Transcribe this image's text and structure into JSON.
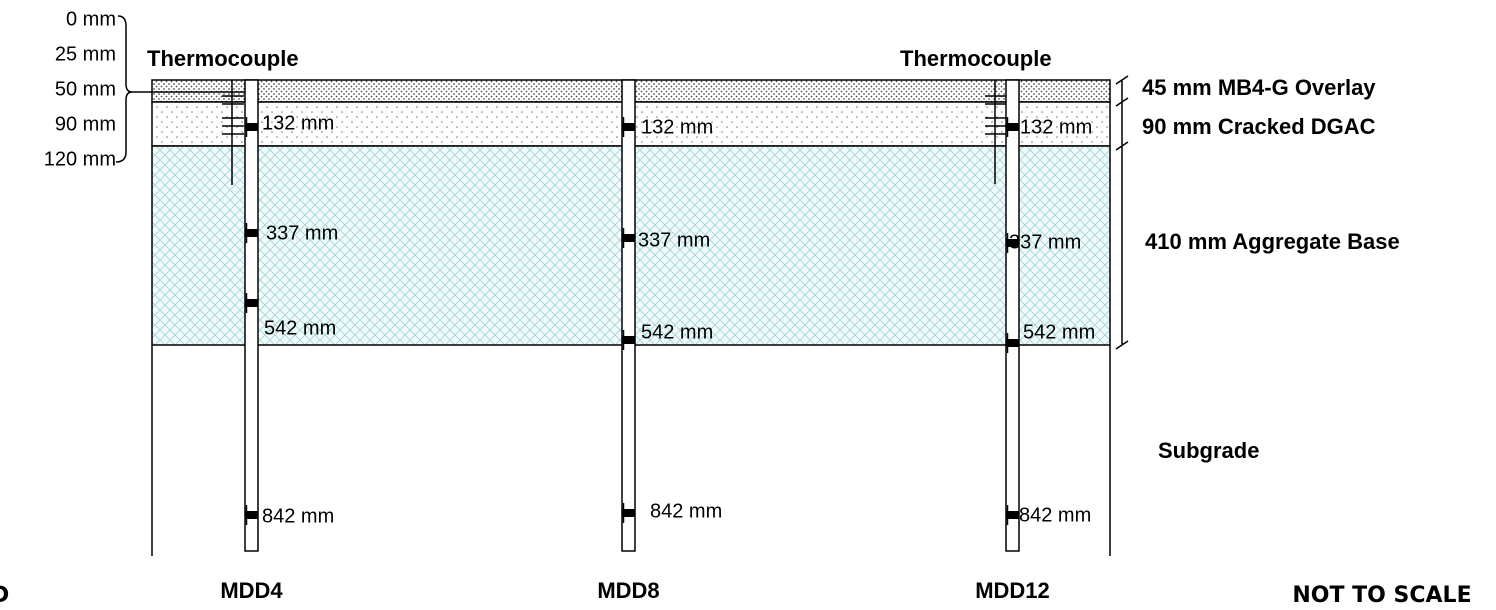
{
  "depth_scale": [
    "0 mm",
    "25 mm",
    "50 mm",
    "90 mm",
    "120 mm"
  ],
  "thermocouples": [
    "Thermocouple",
    "Thermocouple"
  ],
  "layers": [
    "45 mm MB4-G Overlay",
    "90 mm Cracked DGAC",
    "410 mm Aggregate Base",
    "Subgrade"
  ],
  "mdds": [
    {
      "label": "MDD4",
      "sensors": [
        "132 mm",
        "337 mm",
        "542 mm",
        "842 mm"
      ]
    },
    {
      "label": "MDD8",
      "sensors": [
        "132 mm",
        "337 mm",
        "542 mm",
        "842 mm"
      ]
    },
    {
      "label": "MDD12",
      "sensors": [
        "132 mm",
        "337 mm",
        "542 mm",
        "842 mm"
      ]
    }
  ],
  "note": "NOT TO SCALE",
  "edge_label": "D"
}
